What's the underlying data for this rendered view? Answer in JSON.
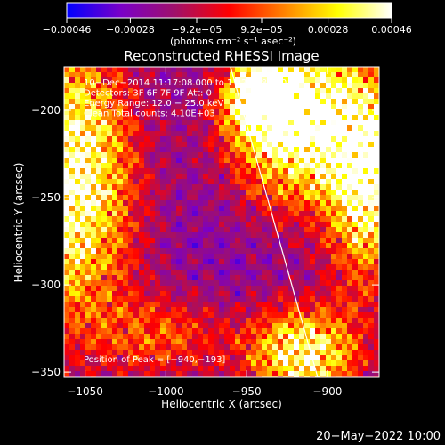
{
  "chart_data": {
    "type": "heatmap",
    "title": "Reconstructed RHESSI Image",
    "xlabel": "Heliocentric X (arcsec)",
    "ylabel": "Heliocentric Y (arcsec)",
    "xlim": [
      -1063,
      -868
    ],
    "ylim": [
      -353,
      -175
    ],
    "x_ticks": [
      -1050,
      -1000,
      -950,
      -900
    ],
    "x_tick_labels": [
      "−1050",
      "−1000",
      "−950",
      "−900"
    ],
    "y_ticks": [
      -200,
      -250,
      -300,
      -350
    ],
    "y_tick_labels": [
      "−200",
      "−250",
      "−300",
      "−350"
    ],
    "colorbar": {
      "ticks": [
        -0.00046,
        -0.00028,
        -9.2e-05,
        9.2e-05,
        0.00028,
        0.00046
      ],
      "tick_labels": [
        "−0.00046",
        "−0.00028",
        "−9.2e−05",
        "9.2e−05",
        "0.00028",
        "0.00046"
      ],
      "range": [
        -0.00046,
        0.00046
      ],
      "colors": [
        "#0000ff",
        "#7a00c8",
        "#a0106a",
        "#ff0000",
        "#ff8000",
        "#ffff00",
        "#ffffff"
      ]
    },
    "units_label": "(photons cm⁻² s⁻¹ asec⁻²)",
    "info_lines": [
      "10−Dec−2014 11:17:08.000 to 11:23:08.000",
      "Detectors: 3F 6F 7F 9F Att: 0",
      "Energy Range: 12.0 − 25.0 keV",
      "Clean     Total counts: 4.10E+03"
    ],
    "peak_label": "Position of Peak = [−940,−193]",
    "peak": [
      -940,
      -193
    ],
    "limb_line": [
      [
        -960,
        -175
      ],
      [
        -906,
        -353
      ]
    ],
    "bright_regions": [
      {
        "x": -1058,
        "y": -240,
        "sx": 28,
        "sy": 60,
        "amp": 0.95
      },
      {
        "x": -920,
        "y": -205,
        "sx": 30,
        "sy": 35,
        "amp": 1.0
      },
      {
        "x": -875,
        "y": -240,
        "sx": 18,
        "sy": 45,
        "amp": 0.85
      },
      {
        "x": -940,
        "y": -193,
        "sx": 14,
        "sy": 14,
        "amp": 0.9
      },
      {
        "x": -915,
        "y": -340,
        "sx": 25,
        "sy": 20,
        "amp": 0.85
      },
      {
        "x": -1000,
        "y": -330,
        "sx": 30,
        "sy": 18,
        "amp": 0.4
      }
    ]
  },
  "footer": {
    "date": "20−May−2022 10:00"
  }
}
